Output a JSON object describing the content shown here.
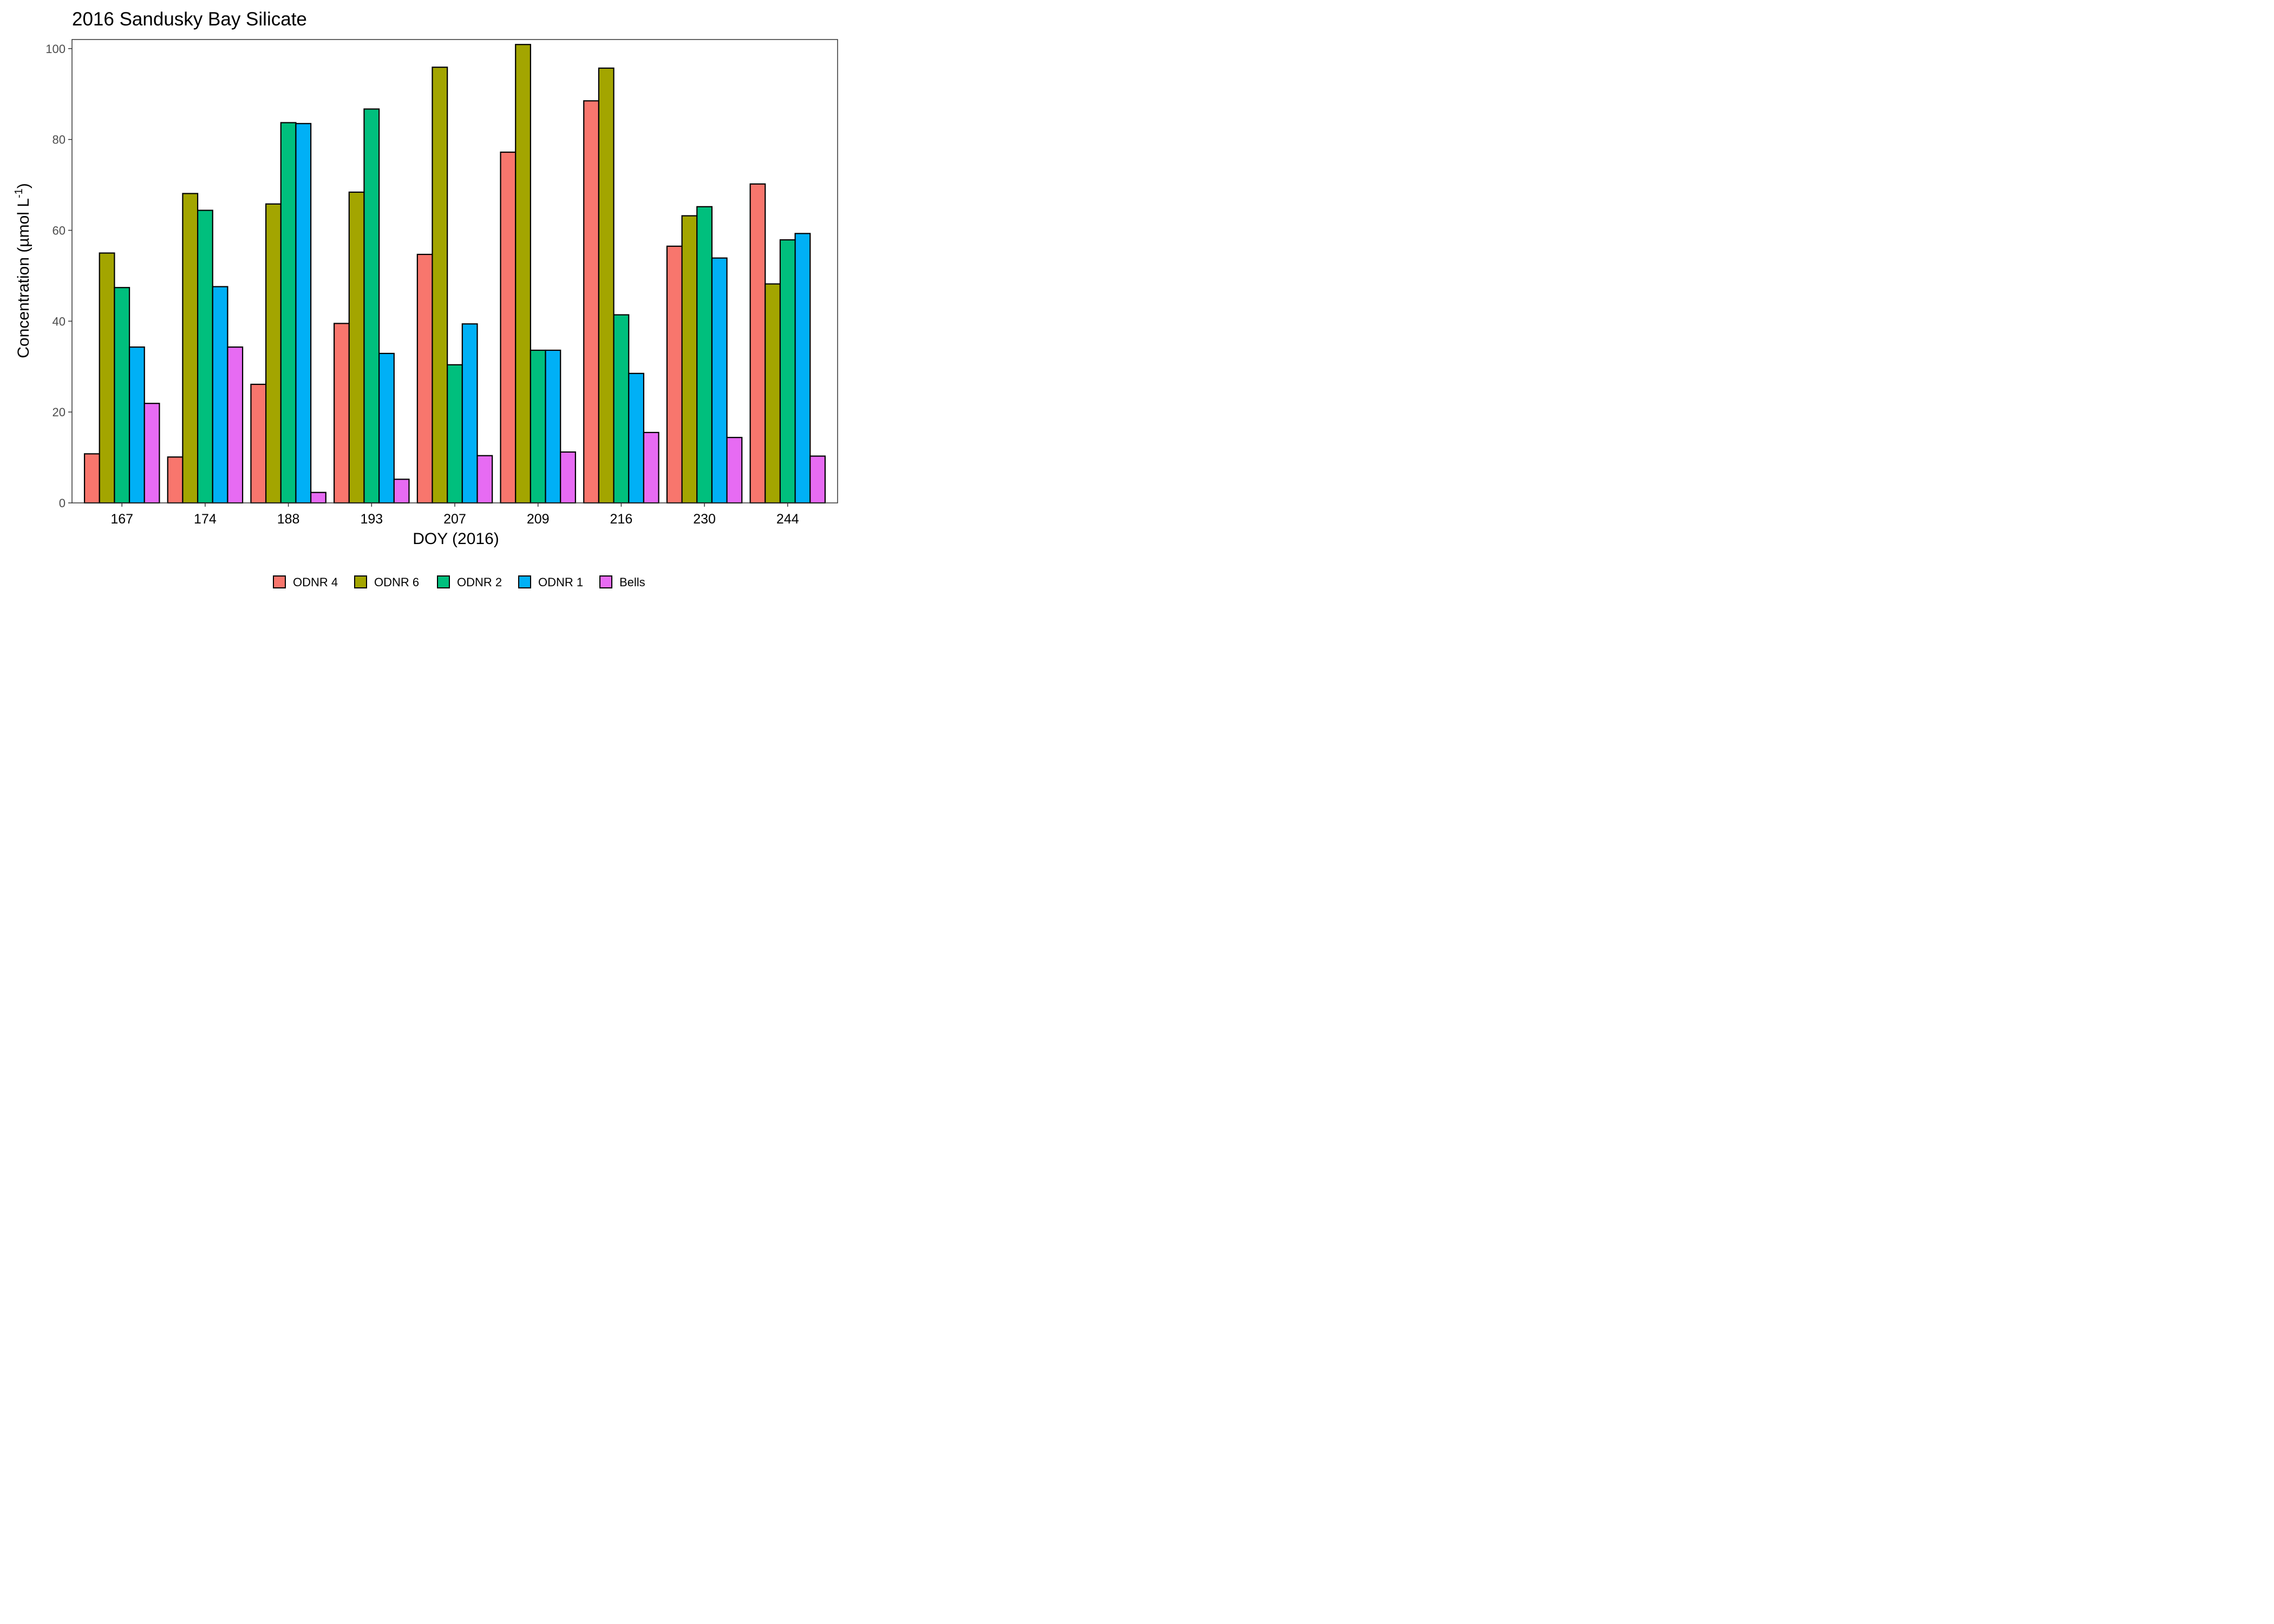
{
  "chart_data": {
    "type": "bar",
    "title": "2016 Sandusky Bay Silicate",
    "xlabel": "DOY (2016)",
    "ylabel_main": "Concentration (µmol L",
    "ylabel_sup": "-1",
    "ylabel_close": ")",
    "ylim": [
      0,
      102
    ],
    "yticks": [
      0,
      20,
      40,
      60,
      80,
      100
    ],
    "grid": false,
    "legend_position": "bottom",
    "categories": [
      "167",
      "174",
      "188",
      "193",
      "207",
      "209",
      "216",
      "230",
      "244"
    ],
    "series": [
      {
        "name": "ODNR 4",
        "color": "#F8766D",
        "values": [
          10.8,
          10.1,
          26.1,
          39.5,
          54.7,
          77.2,
          88.5,
          56.5,
          70.2
        ]
      },
      {
        "name": "ODNR 6",
        "color": "#A3A500",
        "values": [
          55.0,
          68.1,
          65.8,
          68.4,
          95.9,
          100.9,
          95.7,
          63.2,
          48.2
        ]
      },
      {
        "name": "ODNR 2",
        "color": "#00BF7D",
        "values": [
          47.4,
          64.4,
          83.7,
          86.7,
          30.4,
          33.6,
          41.4,
          65.2,
          57.9
        ]
      },
      {
        "name": "ODNR 1",
        "color": "#00B0F6",
        "values": [
          34.3,
          47.6,
          83.5,
          32.9,
          39.4,
          33.6,
          28.5,
          53.9,
          59.3
        ]
      },
      {
        "name": "Bells",
        "color": "#E76BF3",
        "values": [
          21.9,
          34.3,
          2.3,
          5.2,
          10.4,
          11.2,
          15.5,
          14.4,
          10.3
        ]
      }
    ]
  }
}
